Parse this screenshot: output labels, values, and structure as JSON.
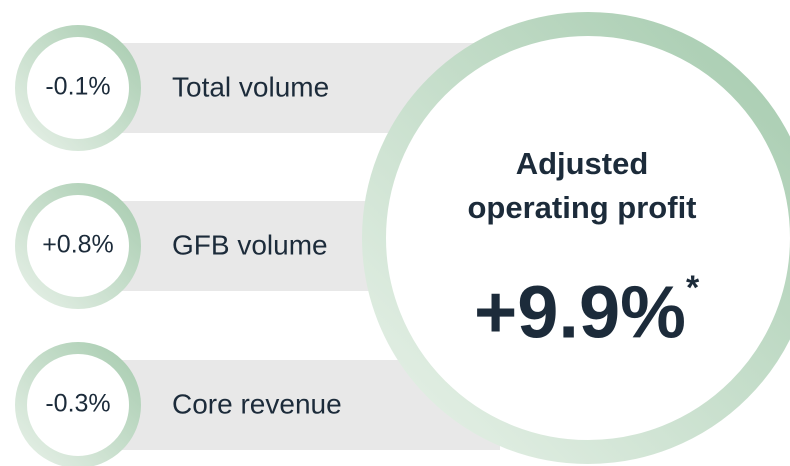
{
  "metrics": [
    {
      "value": "-0.1%",
      "label": "Total volume"
    },
    {
      "value": "+0.8%",
      "label": "GFB volume"
    },
    {
      "value": "-0.3%",
      "label": "Core revenue"
    }
  ],
  "highlight": {
    "title_lines": [
      "Adjusted",
      "operating profit"
    ],
    "value": "+9.9%",
    "footnote_mark": "*"
  }
}
